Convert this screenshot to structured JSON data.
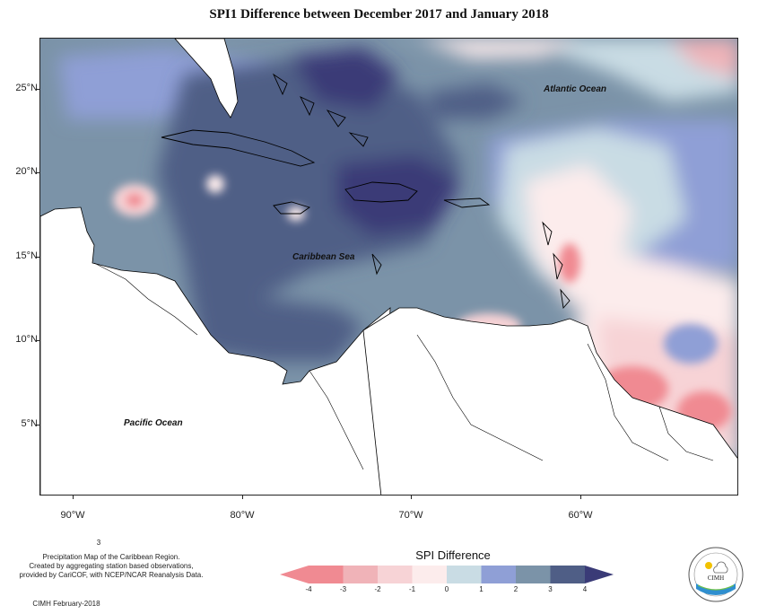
{
  "title": "SPI1 Difference between December 2017 and January 2018",
  "map": {
    "latitudes": [
      {
        "label": "25°N",
        "value": 25
      },
      {
        "label": "20°N",
        "value": 20
      },
      {
        "label": "15°N",
        "value": 15
      },
      {
        "label": "10°N",
        "value": 10
      },
      {
        "label": "5°N",
        "value": 5
      }
    ],
    "longitudes": [
      {
        "label": "90°W",
        "value": -90
      },
      {
        "label": "80°W",
        "value": -80
      },
      {
        "label": "70°W",
        "value": -70
      },
      {
        "label": "60°W",
        "value": -60
      }
    ],
    "labels": {
      "atlantic": "Atlantic Ocean",
      "caribbean": "Caribbean Sea",
      "pacific": "Pacific Ocean"
    }
  },
  "footnote": {
    "marker": "3",
    "line1": "Precipitation Map of the Caribbean Region.",
    "line2": "Created by aggregating station based observations,",
    "line3": "provided by CariCOF, with NCEP/NCAR Reanalysis Data.",
    "credit": "CIMH February-2018"
  },
  "legend": {
    "title": "SPI Difference",
    "ticks": [
      "-4",
      "-3",
      "-2",
      "-1",
      "0",
      "1",
      "2",
      "3",
      "4"
    ],
    "colors": [
      "#f08a92",
      "#f0b3b8",
      "#f7d3d6",
      "#fcecec",
      "#c9dce4",
      "#8f9fd6",
      "#7b93a8",
      "#4f5e86",
      "#3a3b77"
    ]
  },
  "logo": {
    "text": "CIMH"
  }
}
